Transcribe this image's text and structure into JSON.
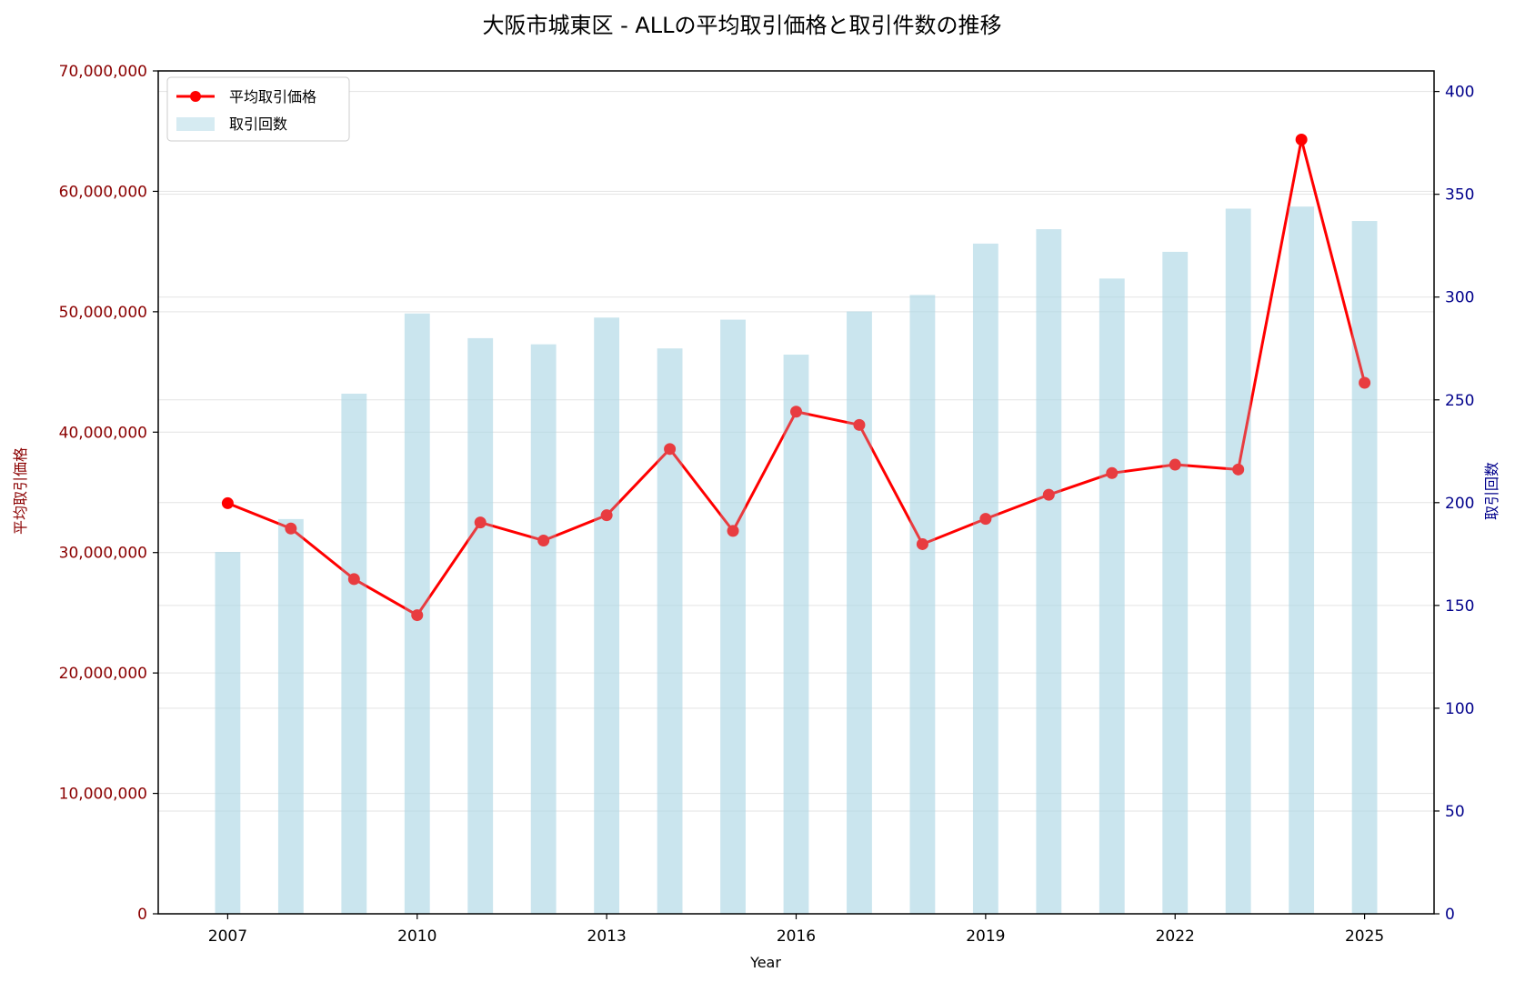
{
  "chart_data": {
    "type": "bar+line",
    "title": "大阪市城東区 - ALLの平均取引価格と取引件数の推移",
    "xlabel": "Year",
    "ylabel_left": "平均取引価格",
    "ylabel_right": "取引回数",
    "x": [
      2007,
      2008,
      2009,
      2010,
      2011,
      2012,
      2013,
      2014,
      2015,
      2016,
      2017,
      2018,
      2019,
      2020,
      2021,
      2022,
      2023,
      2024,
      2025
    ],
    "x_ticks": [
      "2007",
      "2010",
      "2013",
      "2016",
      "2019",
      "2022",
      "2025"
    ],
    "xlim": [
      2005.9,
      2026.1
    ],
    "ylim_left": [
      0,
      70000000
    ],
    "ylim_right": [
      0,
      410
    ],
    "y_ticks_left": [
      "0",
      "10,000,000",
      "20,000,000",
      "30,000,000",
      "40,000,000",
      "50,000,000",
      "60,000,000",
      "70,000,000"
    ],
    "y_ticks_right": [
      "0",
      "50",
      "100",
      "150",
      "200",
      "250",
      "300",
      "350",
      "400"
    ],
    "grid": true,
    "legend_position": "top-left",
    "series": [
      {
        "name": "平均取引価格",
        "type": "line",
        "axis": "left",
        "color": "#ff0000",
        "values": [
          34100000,
          32000000,
          27800000,
          24800000,
          32500000,
          31000000,
          33100000,
          38600000,
          31800000,
          41700000,
          40600000,
          30700000,
          32800000,
          34800000,
          36600000,
          37300000,
          36900000,
          64300000,
          44100000
        ]
      },
      {
        "name": "取引回数",
        "type": "bar",
        "axis": "right",
        "color": "#add8e6",
        "values": [
          176,
          192,
          253,
          292,
          280,
          277,
          290,
          275,
          289,
          272,
          293,
          301,
          326,
          333,
          309,
          322,
          343,
          344,
          337
        ]
      }
    ],
    "colors": {
      "left_axis": "#8b0000",
      "right_axis": "#00008b",
      "line": "#ff0000",
      "bar": "#add8e6",
      "marker_overlap": "#d3676f"
    }
  }
}
